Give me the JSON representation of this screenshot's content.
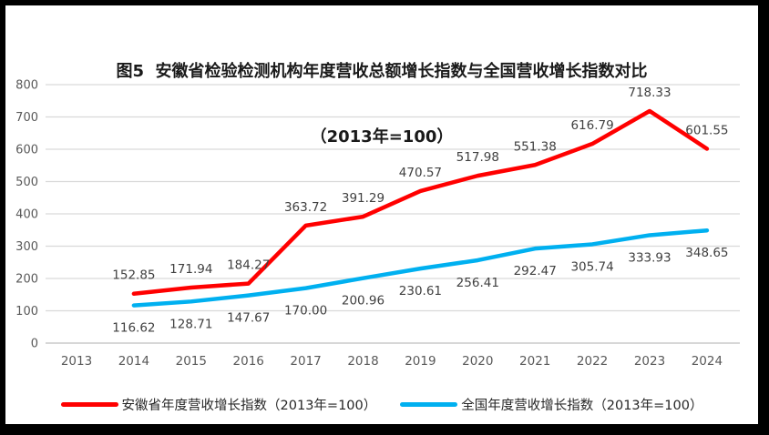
{
  "title": {
    "line1": "图5  安徽省检验检测机构年度营收总额增长指数与全国营收增长指数对比",
    "line2": "（2013年=100）"
  },
  "chart_data": {
    "type": "line",
    "categories": [
      "2013",
      "2014",
      "2015",
      "2016",
      "2017",
      "2018",
      "2019",
      "2020",
      "2021",
      "2022",
      "2023",
      "2024"
    ],
    "series": [
      {
        "name": "安徽省年度营收增长指数（2013年=100）",
        "color": "#FF0000",
        "values": [
          null,
          152.85,
          171.94,
          184.27,
          363.72,
          391.29,
          470.57,
          517.98,
          551.38,
          616.79,
          718.33,
          601.55
        ],
        "labels": [
          null,
          "152.85",
          "171.94",
          "184.27",
          "363.72",
          "391.29",
          "470.57",
          "517.98",
          "551.38",
          "616.79",
          "718.33",
          "601.55"
        ],
        "label_position": "above"
      },
      {
        "name": "全国年度营收增长指数（2013年=100）",
        "color": "#00B0F0",
        "values": [
          null,
          116.62,
          128.71,
          147.67,
          170.0,
          200.96,
          230.61,
          256.41,
          292.47,
          305.74,
          333.93,
          348.65
        ],
        "labels": [
          null,
          "116.62",
          "128.71",
          "147.67",
          "170.00",
          "200.96",
          "230.61",
          "256.41",
          "292.47",
          "305.74",
          "333.93",
          "348.65"
        ],
        "label_position": "below"
      }
    ],
    "ylim": [
      0,
      800
    ],
    "ytick_step": 100,
    "grid": true,
    "legend_position": "bottom",
    "colors": {
      "gridline": "#D9D9D9",
      "baseline": "#BFBFBF",
      "axis_text": "#595959",
      "data_label": "#404040"
    }
  }
}
